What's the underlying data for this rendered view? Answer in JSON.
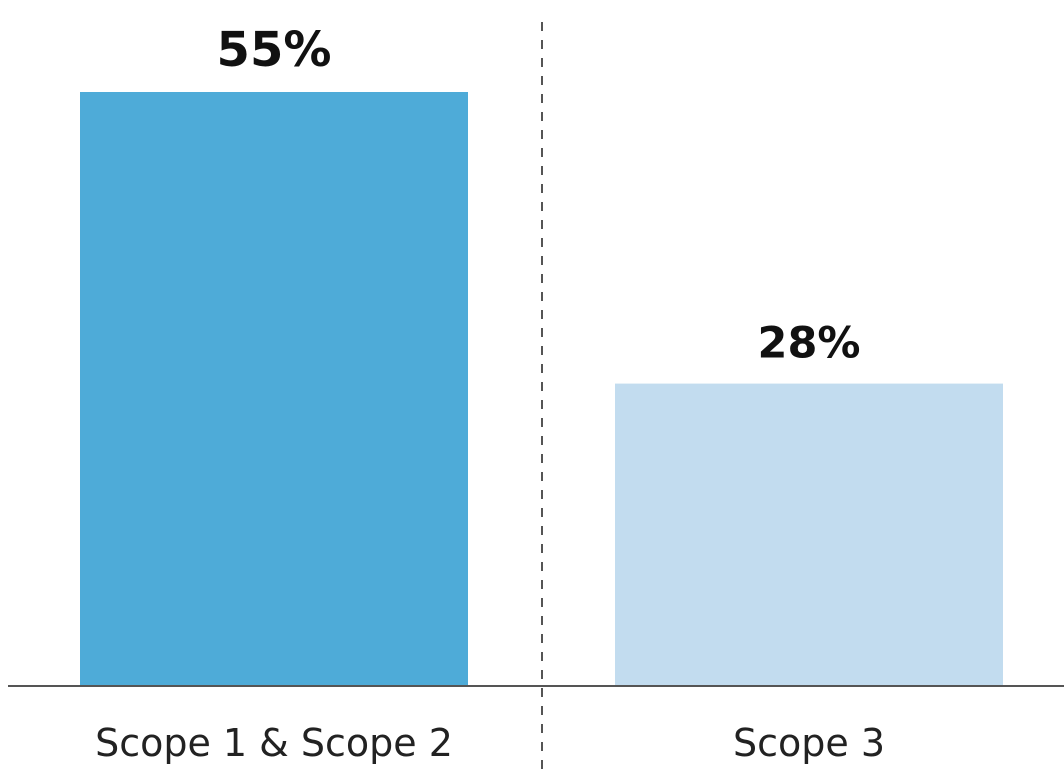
{
  "chart_data": {
    "type": "bar",
    "categories": [
      "Scope 1 & Scope 2",
      "Scope 3"
    ],
    "values": [
      55,
      28
    ],
    "value_labels": [
      "55%",
      "28%"
    ],
    "colors": [
      "#4eabd8",
      "#c2dcef"
    ],
    "ylim": [
      0,
      100
    ],
    "grid": false,
    "legend": "none",
    "title": "",
    "xlabel": "",
    "ylabel": ""
  }
}
